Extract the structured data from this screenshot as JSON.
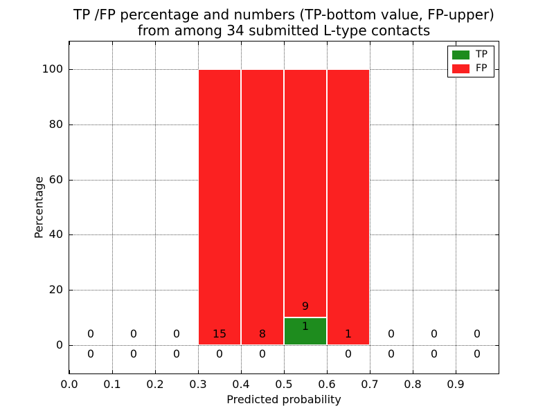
{
  "chart_data": {
    "type": "bar",
    "stacked": true,
    "title_line1": "TP /FP percentage and numbers (TP-bottom value, FP-upper)",
    "title_line2": "from among 34 submitted L-type contacts",
    "xlabel": "Predicted probability",
    "ylabel": "Percentage",
    "total_contacts": 34,
    "xlim": [
      0.0,
      1.0
    ],
    "ylim": [
      -10.3,
      110
    ],
    "xticks": {
      "values": [
        0.0,
        0.1,
        0.2,
        0.3,
        0.4,
        0.5,
        0.6,
        0.7,
        0.8,
        0.9
      ],
      "labels": [
        "0.0",
        "0.1",
        "0.2",
        "0.3",
        "0.4",
        "0.5",
        "0.6",
        "0.7",
        "0.8",
        "0.9"
      ]
    },
    "yticks": {
      "values": [
        0,
        20,
        40,
        60,
        80,
        100
      ],
      "labels": [
        "0",
        "20",
        "40",
        "60",
        "80",
        "100"
      ]
    },
    "grid": true,
    "grid_style": "dotted",
    "bin_width": 0.1,
    "bin_starts": [
      0.0,
      0.1,
      0.2,
      0.3,
      0.4,
      0.5,
      0.6,
      0.7,
      0.8,
      0.9
    ],
    "colors": {
      "TP": "#1e8c1e",
      "FP": "#fb2121"
    },
    "series": [
      {
        "name": "TP",
        "counts": [
          0,
          0,
          0,
          0,
          0,
          1,
          0,
          0,
          0,
          0
        ],
        "percentages": [
          0,
          0,
          0,
          0,
          0,
          10,
          0,
          0,
          0,
          0
        ]
      },
      {
        "name": "FP",
        "counts": [
          0,
          0,
          0,
          15,
          8,
          9,
          1,
          0,
          0,
          0
        ],
        "percentages": [
          0,
          0,
          0,
          100,
          100,
          90,
          100,
          0,
          0,
          0
        ]
      }
    ],
    "legend": {
      "position": "upper right",
      "entries": [
        {
          "name": "TP"
        },
        {
          "name": "FP"
        }
      ]
    }
  }
}
